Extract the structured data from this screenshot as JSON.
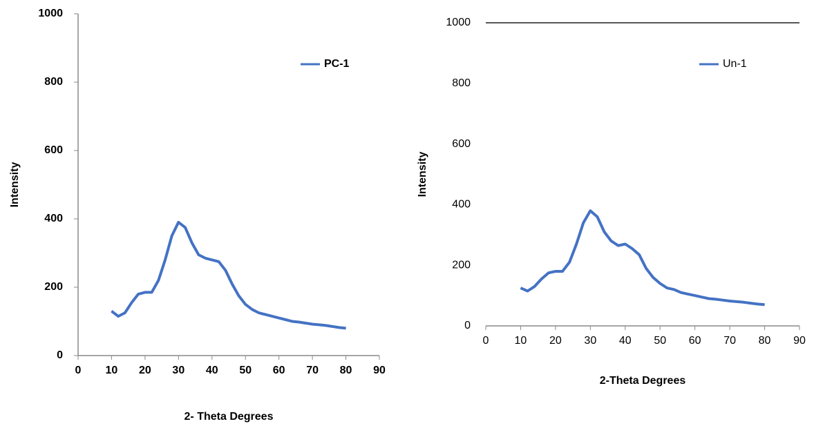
{
  "chart_data": [
    {
      "type": "line",
      "x_label": "2- Theta Degrees",
      "y_label": "Intensity",
      "x": [
        10,
        12,
        14,
        16,
        18,
        20,
        22,
        24,
        26,
        28,
        30,
        32,
        34,
        36,
        38,
        40,
        42,
        44,
        46,
        48,
        50,
        52,
        54,
        56,
        58,
        60,
        62,
        64,
        66,
        68,
        70,
        72,
        74,
        76,
        78,
        80
      ],
      "series": [
        {
          "name": "PC-1",
          "color": "#4472c4",
          "values": [
            130,
            115,
            125,
            155,
            180,
            185,
            185,
            220,
            280,
            350,
            390,
            375,
            330,
            295,
            285,
            280,
            275,
            250,
            210,
            175,
            150,
            135,
            125,
            120,
            115,
            110,
            105,
            100,
            98,
            95,
            92,
            90,
            88,
            85,
            82,
            80
          ]
        }
      ],
      "xlim": [
        0,
        90
      ],
      "xticks": [
        0,
        10,
        20,
        30,
        40,
        50,
        60,
        70,
        80,
        90
      ],
      "ylim": [
        0,
        1000
      ],
      "yticks": [
        0,
        200,
        400,
        600,
        800,
        1000
      ],
      "grid": false,
      "legend": "upper right"
    },
    {
      "type": "line",
      "x_label": "2-Theta Degrees",
      "y_label": "Intensity",
      "x": [
        10,
        12,
        14,
        16,
        18,
        20,
        22,
        24,
        26,
        28,
        30,
        32,
        34,
        36,
        38,
        40,
        42,
        44,
        46,
        48,
        50,
        52,
        54,
        56,
        58,
        60,
        62,
        64,
        66,
        68,
        70,
        72,
        74,
        76,
        78,
        80
      ],
      "series": [
        {
          "name": "Un-1",
          "color": "#4472c4",
          "values": [
            125,
            115,
            130,
            155,
            175,
            180,
            180,
            210,
            270,
            340,
            380,
            360,
            310,
            280,
            265,
            270,
            255,
            235,
            190,
            160,
            140,
            125,
            120,
            110,
            105,
            100,
            95,
            90,
            88,
            85,
            82,
            80,
            78,
            75,
            72,
            70
          ]
        }
      ],
      "xlim": [
        0,
        90
      ],
      "xticks": [
        0,
        10,
        20,
        30,
        40,
        50,
        60,
        70,
        80,
        90
      ],
      "ylim": [
        0,
        1000
      ],
      "yticks": [
        0,
        200,
        400,
        600,
        800,
        1000
      ],
      "grid": false,
      "legend": "upper right"
    }
  ]
}
